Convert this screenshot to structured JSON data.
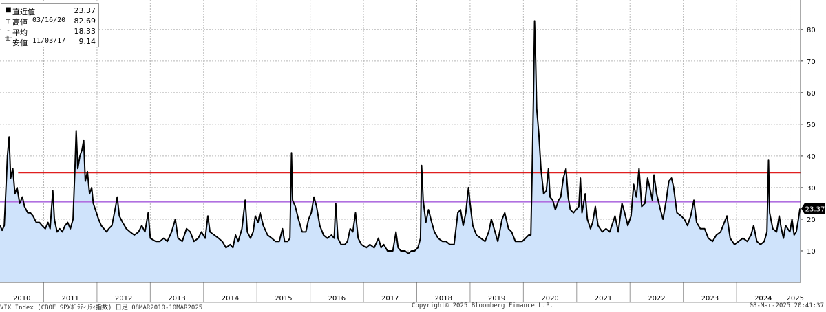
{
  "legend": {
    "rows": [
      {
        "symbol": "■",
        "label": "直近値",
        "date": "",
        "value": "23.37"
      },
      {
        "symbol": "┬",
        "label": "高値",
        "date": "03/16/20",
        "value": "82.69"
      },
      {
        "symbol": "-+-",
        "label": "平均",
        "date": "",
        "value": "18.33"
      },
      {
        "symbol": "┴",
        "label": "安値",
        "date": "11/03/17",
        "value": "9.14"
      }
    ]
  },
  "footer": {
    "left": "VIX Index (CBOE SPXﾎﾞﾗﾃｨﾘﾃｨ指数) 日足 08MAR2010-10MAR2025",
    "center": "Copyright© 2025 Bloomberg Finance L.P.",
    "right": "08-Mar-2025 20:41:37"
  },
  "colors": {
    "line": "#000000",
    "area": "#cfe3fb",
    "red_line": "#e02020",
    "purple_line": "#b070e0",
    "last_badge": "#000000"
  },
  "chart_data": {
    "type": "area",
    "title": "",
    "xlabel": "",
    "ylabel": "",
    "x_tick_labels": [
      "2010",
      "2011",
      "2012",
      "2013",
      "2014",
      "2015",
      "2016",
      "2017",
      "2018",
      "2019",
      "2020",
      "2021",
      "2022",
      "2023",
      "2024",
      "2025"
    ],
    "y_tick_labels": [
      "10",
      "20",
      "30",
      "40",
      "50",
      "60",
      "70",
      "80"
    ],
    "ylim": [
      0,
      89.3
    ],
    "xlim": [
      2010.18,
      2025.2
    ],
    "grid": true,
    "y_axis_side": "right",
    "last_value_label": "23.37",
    "horizontal_lines": [
      {
        "value": 34.7,
        "color": "red"
      },
      {
        "value": 25.5,
        "color": "purple"
      }
    ],
    "series": [
      {
        "values": [
          [
            2010.18,
            18
          ],
          [
            2010.22,
            16.5
          ],
          [
            2010.26,
            18
          ],
          [
            2010.32,
            40
          ],
          [
            2010.35,
            46
          ],
          [
            2010.38,
            33
          ],
          [
            2010.42,
            36
          ],
          [
            2010.46,
            28
          ],
          [
            2010.5,
            30
          ],
          [
            2010.55,
            25
          ],
          [
            2010.6,
            27
          ],
          [
            2010.64,
            24
          ],
          [
            2010.7,
            22
          ],
          [
            2010.75,
            22
          ],
          [
            2010.8,
            21
          ],
          [
            2010.86,
            19
          ],
          [
            2010.92,
            19
          ],
          [
            2010.97,
            18
          ],
          [
            2011.03,
            17
          ],
          [
            2011.08,
            19
          ],
          [
            2011.12,
            17
          ],
          [
            2011.17,
            29
          ],
          [
            2011.2,
            20
          ],
          [
            2011.25,
            16
          ],
          [
            2011.3,
            17
          ],
          [
            2011.35,
            16
          ],
          [
            2011.4,
            18
          ],
          [
            2011.45,
            19
          ],
          [
            2011.5,
            17
          ],
          [
            2011.55,
            20
          ],
          [
            2011.59,
            38
          ],
          [
            2011.61,
            48
          ],
          [
            2011.64,
            36
          ],
          [
            2011.68,
            40
          ],
          [
            2011.72,
            42
          ],
          [
            2011.75,
            45
          ],
          [
            2011.78,
            32
          ],
          [
            2011.82,
            35
          ],
          [
            2011.86,
            28
          ],
          [
            2011.9,
            30
          ],
          [
            2011.93,
            25
          ],
          [
            2011.97,
            23
          ],
          [
            2012.03,
            20
          ],
          [
            2012.08,
            18
          ],
          [
            2012.13,
            17
          ],
          [
            2012.18,
            16
          ],
          [
            2012.22,
            17
          ],
          [
            2012.28,
            18
          ],
          [
            2012.35,
            24
          ],
          [
            2012.38,
            27
          ],
          [
            2012.42,
            21
          ],
          [
            2012.48,
            19
          ],
          [
            2012.55,
            17
          ],
          [
            2012.62,
            16
          ],
          [
            2012.7,
            15
          ],
          [
            2012.78,
            16
          ],
          [
            2012.84,
            18
          ],
          [
            2012.9,
            16
          ],
          [
            2012.96,
            22
          ],
          [
            2013.0,
            14
          ],
          [
            2013.1,
            13
          ],
          [
            2013.18,
            13
          ],
          [
            2013.25,
            14
          ],
          [
            2013.32,
            13
          ],
          [
            2013.4,
            16
          ],
          [
            2013.47,
            20
          ],
          [
            2013.52,
            14
          ],
          [
            2013.6,
            13
          ],
          [
            2013.68,
            17
          ],
          [
            2013.75,
            16
          ],
          [
            2013.82,
            13
          ],
          [
            2013.9,
            14
          ],
          [
            2013.96,
            16
          ],
          [
            2014.03,
            14
          ],
          [
            2014.08,
            21
          ],
          [
            2014.12,
            16
          ],
          [
            2014.2,
            15
          ],
          [
            2014.28,
            14
          ],
          [
            2014.35,
            13
          ],
          [
            2014.42,
            11
          ],
          [
            2014.5,
            12
          ],
          [
            2014.55,
            11
          ],
          [
            2014.6,
            15
          ],
          [
            2014.65,
            13
          ],
          [
            2014.72,
            17
          ],
          [
            2014.78,
            26
          ],
          [
            2014.82,
            16
          ],
          [
            2014.88,
            14
          ],
          [
            2014.93,
            16
          ],
          [
            2014.97,
            21
          ],
          [
            2015.02,
            19
          ],
          [
            2015.06,
            22
          ],
          [
            2015.12,
            18
          ],
          [
            2015.2,
            15
          ],
          [
            2015.28,
            14
          ],
          [
            2015.35,
            13
          ],
          [
            2015.42,
            13
          ],
          [
            2015.48,
            17
          ],
          [
            2015.52,
            13
          ],
          [
            2015.58,
            13
          ],
          [
            2015.62,
            14
          ],
          [
            2015.65,
            41
          ],
          [
            2015.67,
            26
          ],
          [
            2015.72,
            24
          ],
          [
            2015.78,
            20
          ],
          [
            2015.85,
            16
          ],
          [
            2015.92,
            16
          ],
          [
            2015.97,
            20
          ],
          [
            2016.02,
            22
          ],
          [
            2016.07,
            27
          ],
          [
            2016.12,
            24
          ],
          [
            2016.18,
            18
          ],
          [
            2016.25,
            15
          ],
          [
            2016.32,
            14
          ],
          [
            2016.4,
            15
          ],
          [
            2016.45,
            14
          ],
          [
            2016.48,
            25
          ],
          [
            2016.52,
            14
          ],
          [
            2016.58,
            12
          ],
          [
            2016.65,
            12
          ],
          [
            2016.7,
            13
          ],
          [
            2016.75,
            17
          ],
          [
            2016.8,
            16
          ],
          [
            2016.85,
            22
          ],
          [
            2016.9,
            14
          ],
          [
            2016.96,
            12
          ],
          [
            2017.05,
            11
          ],
          [
            2017.12,
            12
          ],
          [
            2017.2,
            11
          ],
          [
            2017.28,
            14
          ],
          [
            2017.33,
            11
          ],
          [
            2017.38,
            12
          ],
          [
            2017.45,
            10
          ],
          [
            2017.55,
            10
          ],
          [
            2017.61,
            16
          ],
          [
            2017.65,
            11
          ],
          [
            2017.7,
            10
          ],
          [
            2017.78,
            10
          ],
          [
            2017.84,
            9.14
          ],
          [
            2017.9,
            10
          ],
          [
            2017.96,
            10
          ],
          [
            2018.02,
            11
          ],
          [
            2018.07,
            14
          ],
          [
            2018.09,
            37
          ],
          [
            2018.12,
            26
          ],
          [
            2018.17,
            19
          ],
          [
            2018.22,
            23
          ],
          [
            2018.28,
            19
          ],
          [
            2018.33,
            16
          ],
          [
            2018.4,
            14
          ],
          [
            2018.48,
            13
          ],
          [
            2018.55,
            13
          ],
          [
            2018.62,
            12
          ],
          [
            2018.7,
            12
          ],
          [
            2018.77,
            22
          ],
          [
            2018.82,
            23
          ],
          [
            2018.87,
            18
          ],
          [
            2018.92,
            22
          ],
          [
            2018.97,
            30
          ],
          [
            2019.0,
            25
          ],
          [
            2019.05,
            18
          ],
          [
            2019.12,
            15
          ],
          [
            2019.2,
            14
          ],
          [
            2019.28,
            13
          ],
          [
            2019.35,
            16
          ],
          [
            2019.4,
            20
          ],
          [
            2019.45,
            17
          ],
          [
            2019.52,
            13
          ],
          [
            2019.6,
            20
          ],
          [
            2019.65,
            22
          ],
          [
            2019.72,
            17
          ],
          [
            2019.78,
            16
          ],
          [
            2019.85,
            13
          ],
          [
            2019.92,
            13
          ],
          [
            2019.98,
            13
          ],
          [
            2020.04,
            14
          ],
          [
            2020.1,
            15
          ],
          [
            2020.14,
            15
          ],
          [
            2020.17,
            40
          ],
          [
            2020.19,
            60
          ],
          [
            2020.21,
            82.69
          ],
          [
            2020.23,
            70
          ],
          [
            2020.25,
            55
          ],
          [
            2020.29,
            47
          ],
          [
            2020.33,
            36
          ],
          [
            2020.38,
            28
          ],
          [
            2020.43,
            29
          ],
          [
            2020.47,
            36
          ],
          [
            2020.5,
            27
          ],
          [
            2020.55,
            26
          ],
          [
            2020.6,
            23
          ],
          [
            2020.66,
            26
          ],
          [
            2020.7,
            27
          ],
          [
            2020.75,
            33
          ],
          [
            2020.8,
            36
          ],
          [
            2020.84,
            27
          ],
          [
            2020.88,
            23
          ],
          [
            2020.94,
            22
          ],
          [
            2020.99,
            23
          ],
          [
            2021.04,
            24
          ],
          [
            2021.07,
            33
          ],
          [
            2021.1,
            22
          ],
          [
            2021.16,
            28
          ],
          [
            2021.2,
            20
          ],
          [
            2021.26,
            17
          ],
          [
            2021.3,
            19
          ],
          [
            2021.35,
            24
          ],
          [
            2021.4,
            18
          ],
          [
            2021.48,
            16
          ],
          [
            2021.55,
            17
          ],
          [
            2021.62,
            16
          ],
          [
            2021.68,
            19
          ],
          [
            2021.72,
            21
          ],
          [
            2021.78,
            16
          ],
          [
            2021.85,
            25
          ],
          [
            2021.9,
            22
          ],
          [
            2021.96,
            18
          ],
          [
            2022.02,
            21
          ],
          [
            2022.07,
            31
          ],
          [
            2022.12,
            27
          ],
          [
            2022.17,
            36
          ],
          [
            2022.22,
            24
          ],
          [
            2022.28,
            25
          ],
          [
            2022.33,
            33
          ],
          [
            2022.37,
            30
          ],
          [
            2022.42,
            26
          ],
          [
            2022.45,
            34
          ],
          [
            2022.5,
            28
          ],
          [
            2022.57,
            23
          ],
          [
            2022.62,
            20
          ],
          [
            2022.68,
            26
          ],
          [
            2022.73,
            32
          ],
          [
            2022.78,
            33
          ],
          [
            2022.82,
            30
          ],
          [
            2022.88,
            22
          ],
          [
            2022.96,
            21
          ],
          [
            2023.02,
            20
          ],
          [
            2023.08,
            18
          ],
          [
            2023.14,
            21
          ],
          [
            2023.2,
            26
          ],
          [
            2023.25,
            19
          ],
          [
            2023.32,
            17
          ],
          [
            2023.4,
            17
          ],
          [
            2023.47,
            14
          ],
          [
            2023.55,
            13
          ],
          [
            2023.62,
            15
          ],
          [
            2023.7,
            16
          ],
          [
            2023.77,
            19
          ],
          [
            2023.82,
            21
          ],
          [
            2023.88,
            14
          ],
          [
            2023.96,
            12
          ],
          [
            2024.04,
            13
          ],
          [
            2024.12,
            14
          ],
          [
            2024.2,
            13
          ],
          [
            2024.27,
            15
          ],
          [
            2024.32,
            18
          ],
          [
            2024.38,
            13
          ],
          [
            2024.45,
            12
          ],
          [
            2024.52,
            13
          ],
          [
            2024.57,
            16
          ],
          [
            2024.6,
            38.6
          ],
          [
            2024.62,
            22
          ],
          [
            2024.68,
            17
          ],
          [
            2024.75,
            16
          ],
          [
            2024.8,
            21
          ],
          [
            2024.84,
            17
          ],
          [
            2024.88,
            14
          ],
          [
            2024.92,
            18
          ],
          [
            2024.96,
            17
          ],
          [
            2025.0,
            16
          ],
          [
            2025.04,
            20
          ],
          [
            2025.08,
            15
          ],
          [
            2025.12,
            16
          ],
          [
            2025.16,
            20
          ],
          [
            2025.19,
            23.37
          ]
        ]
      }
    ]
  }
}
